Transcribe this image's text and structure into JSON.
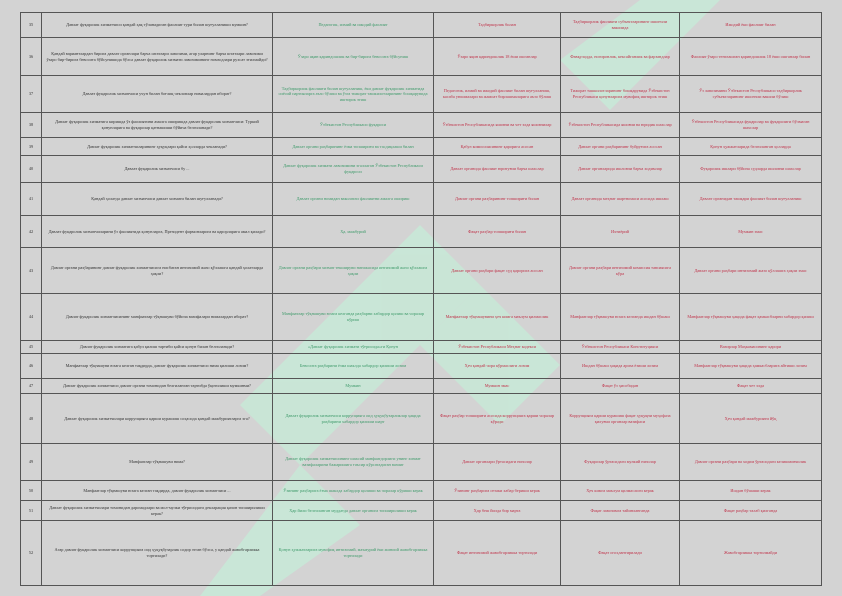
{
  "colors": {
    "correct": "#3e9a6a",
    "wrong": "#c0334a",
    "background": "#d3d3d3",
    "watermark": "#c6ecd8"
  },
  "watermark": {
    "text": "Test"
  },
  "rows": [
    {
      "num": "35",
      "q": "Давлат фуқаролик хизматчиси қандай ҳақ тўланадиган фаолият тури билан шуғулланиши мумкин?",
      "a": [
        "Педагогик, илмий ва ижодий фаолият",
        "Тадбиркорлик билан",
        "Тадбиркорлик фаолияти субъектларининг ишончли вакилида",
        "Ижодий ёки фаолият билан"
      ]
    },
    {
      "num": "36",
      "q": "Қандай вариантлардан бирига давлат органлари барча штатлари лавозими, агар уларнинг барча штатлари лавозими ўзаро бир-бирига бевосита бўйсунишида бўлса давлат фуқаролик хизмати лавозимининг номзодлари рухсат этилмайди?",
      "a": [
        "Ўзаро яқин қариндошлик ва бир-бирига бевосита бўйсуниш",
        "Ўзаро яқин қариндошлик 18 ёши ошганлар",
        "Фавқулодда, ногиронлик, кексайганлик ва фарзандлар",
        "Фаолият ўзаро тенглашган қариндошлик 18 ёши ошганлар билан"
      ]
    },
    {
      "num": "37",
      "q": "Давлат фуқаролик хизматчиси учун билан боғлиқ чекловлар нималардан иборат?",
      "a": [
        "Тадбиркорлик фаолияти билан шуғулланиш, ёки давлат фуқаролик хизматида сиёсий партияларга аъзо бўлиш ва ўзга тижорат ташкилотларининг бошқарувида иштирок этиш",
        "Педагогик, илмий ва ижодий фаолият билан шуғулланиш, касаба уюшмалари ва жамоат бирлашмаларига аъзо бўлиш",
        "Тижорат ташкилотларининг бошқарувида Ўзбекистон Республикаси қонунларига мувофиқ иштирок этиш",
        "Ўз лавозимини Ўзбекистон Республикаси тадбиркорлик субъектларининг ишончли вакили бўлиш"
      ]
    },
    {
      "num": "38",
      "q": "Давлат фуқаролик хизматига киришда ўз фаолиятини амалга оширишда давлат фуқаролик хизматчиси: Туркий қонунларига ва фуқаролар қатнашиши бўйича белгиланади?",
      "a": [
        "Ўзбекистон Республикаси фуқароси",
        "Ўзбекистон Республикасида яшовчи ва чет элда яшовчилар",
        "Ўзбекистон Республикасида яшовчи ва юридик шахслар",
        "Ўзбекистон Республикасида фуқаролар ва фуқаролиги бўлмаган шахслар"
      ]
    },
    {
      "num": "39",
      "q": "Давлат фуқаролик хизматчиларининг ҳуқуқлари қайси ҳолларда чекланади?",
      "a": [
        "Давлат органи раҳбарининг ёзма топшириғи ва тасдиқлаши билан",
        "Қабул комиссиясининг қарорига асосан",
        "Давлат органи раҳбарининг буйруғига асосан",
        "Қонун ҳужжатларида белгиланган ҳолларда"
      ]
    },
    {
      "num": "40",
      "q": "Давлат фуқаролик хизматчиси бу ...",
      "a": [
        "Давлат фуқаролик хизмати лавозимини эгаллаган Ўзбекистон Республикаси фуқароси",
        "Давлат органида фаолият юритувчи барча шахслар",
        "Давлат органларида ишловчи барча ходимлар",
        "Фуқаролик ишлари бўйича судларда ишловчи шахслар"
      ]
    },
    {
      "num": "41",
      "q": "Қандай ҳолатда давлат хизматчиси давлат хизмати билан шуғулланади?",
      "a": [
        "Давлат органи номидан ваколатли фаолиятни амалга ошириш",
        "Давлат органи раҳбарининг топшириғи билан",
        "Давлат органида меҳнат шартномаси асосида ишлаш",
        "Давлат органидан ташқари фаолият билан шуғулланиш"
      ]
    },
    {
      "num": "42",
      "q": "Давлат фуқаролик хизматчиларини ўз фаолиятида қонунларга, Президент фармонларига ва қарорларига амал қилади?",
      "a": [
        "Ҳа, мажбурий",
        "Фақат раҳбар топшириғи билан",
        "Ихтиёрий",
        "Мумкин эмас"
      ]
    },
    {
      "num": "43",
      "q": "Давлат органи раҳбарининг давлат фуқаролик хизматчисига нисбатан интизомий жазо қўллашга қандай ҳолатларда ҳақли?",
      "a": [
        "Давлат органи раҳбари хизмат текшируви натижасида интизомий жазо қўллашга ҳақли",
        "Давлат органи раҳбари фақат суд қарорига асосан",
        "Давлат органи раҳбари интизомий комиссия тавсиясига кўра",
        "Давлат органи раҳбари интизомий жазо қўллашга ҳақли эмас"
      ]
    },
    {
      "num": "44",
      "q": "Давлат фуқаролик хизматчисининг манфаатлар тўқнашуви бўйича вазифалари нималардан иборат?",
      "a": [
        "Манфаатлар тўқнашуви юзага келганда раҳбарни хабардор қилиш ва чоралар кўриш",
        "Манфаатлар тўқнашувини ҳеч кимга маълум қилмаслик",
        "Манфаатлар тўқнашуви юзага келганда ишдан бўшаш",
        "Манфаатлар тўқнашуви ҳақида фақат ҳамкасбларни хабардор қилиш"
      ]
    },
    {
      "num": "45",
      "q": "Давлат фуқаролик хизматига қабул қилиш тартиби қайси қонун билан белгиланади?",
      "a": [
        "«Давлат фуқаролик хизмати тўғрисида»ги Қонун",
        "Ўзбекистон Республикаси Меҳнат кодекси",
        "Ўзбекистон Республикаси Конституцияси",
        "Вазирлар Маҳкамасининг қарори"
      ]
    },
    {
      "num": "46",
      "q": "Манфаатлар тўқнашуви юзага келган тақдирда, давлат фуқаролик хизматчиси нима қилиши лозим?",
      "a": [
        "Бевосита раҳбарини ёзма шаклда хабардор қилиши лозим",
        "Ҳеч қандай чора кўрмаслиги лозим",
        "Ишдан бўшаш ҳақида ариза ёзиши лозим",
        "Манфаатлар тўқнашуви ҳақида ҳамкасбларига айтиши лозим"
      ]
    },
    {
      "num": "47",
      "q": "Давлат фуқаролик хизматчиси давлат органи томонидан белгиланган тартибда ўқитилиши мумкинми?",
      "a": [
        "Мумкин",
        "Мумкин эмас",
        "Фақат ўз ҳисобидан",
        "Фақат чет элда"
      ]
    },
    {
      "num": "48",
      "q": "Давлат фуқаролик хизматчилари коррупцияга қарши курашиш соҳасида қандай мажбуриятларга эга?",
      "a": [
        "Давлат фуқаролик хизматчиси коррупцияга оид ҳуқуқбузарликлар ҳақида раҳбарини хабардор қилиши шарт",
        "Фақат раҳбар топшириғи асосида коррупцияга қарши чоралар кўради",
        "Коррупцияга қарши курашиш фақат ҳуқуқни муҳофаза қилувчи органлар вазифаси",
        "Ҳеч қандай мажбурияти йўқ"
      ]
    },
    {
      "num": "49",
      "q": "Манфаатлар тўқнашуви нима?",
      "a": [
        "Давлат фуқаролик хизматчисининг шахсий манфаатдорлиги унинг хизмат вазифаларини бажаришига таъсир кўрсатадиган вазият",
        "Давлат органлари ўртасидаги низолар",
        "Фуқаролар ўртасидаги мулкий низолар",
        "Давлат органи раҳбари ва ходим ўртасидаги келишмовчилик"
      ]
    },
    {
      "num": "50",
      "q": "Манфаатлар тўқнашуви юзага келган тақдирда, давлат фуқаролик хизматчиси ...",
      "a": [
        "Ўзининг раҳбарига ёзма шаклда хабардор қилиши ва чоралар кўриши керак",
        "Ўзининг раҳбарига оғзаки хабар бериши керак",
        "Ҳеч кимга маълум қилмаслиги керак",
        "Ишдан бўшаши керак"
      ]
    },
    {
      "num": "51",
      "q": "Давлат фуқаролик хизматчилари томонидан даромадлари ва мол-мулки тўғрисидаги декларация қачон топширилиши керак?",
      "a": [
        "Ҳар йили белгиланган муддатда давлат органига топширилиши керак",
        "Ҳар беш йилда бир марта",
        "Фақат лавозимга тайинланганда",
        "Фақат раҳбар талаб қилганда"
      ]
    },
    {
      "num": "52",
      "q": "Агар давлат фуқаролик хизматчиси коррупцияга оид ҳуқуқбузарлик содир этган бўлса, у қандай жавобгарликка тортилади?",
      "a": [
        "Қонун ҳужжатларига мувофиқ интизомий, маъмурий ёки жиноий жавобгарликка тортилади",
        "Фақат интизомий жавобгарликка тортилади",
        "Фақат огоҳлантирилади",
        "Жавобгарликка тортилмайди"
      ]
    }
  ]
}
